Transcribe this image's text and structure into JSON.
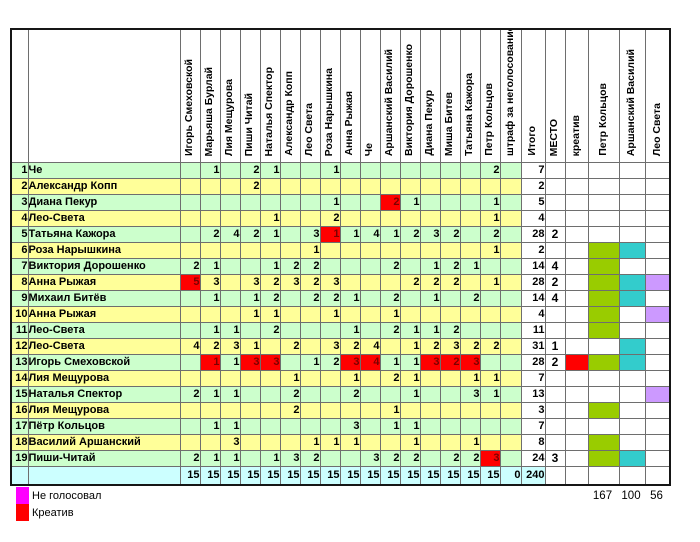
{
  "voters": [
    "Игорь Смеховской",
    "Марьяша Бурлай",
    "Лия Мещурова",
    "Пиши Читай",
    "Наталья Спектор",
    "Александр Копп",
    "Лео Света",
    "Роза Нарышкина",
    "Анна Рыжая",
    "Че",
    "Аршанский Василий",
    "Виктория Дорошенко",
    "Диана Пекур",
    "Миша Битев",
    "Татьяна Кажора",
    "Петр Кольцов"
  ],
  "columns": {
    "penalty": "штраф за неголосование",
    "total": "Итого",
    "place": "МЕСТО",
    "creative": "креатив"
  },
  "extra_voters": [
    "Петр Кольцов",
    "Аршанский Василий",
    "Лео Света"
  ],
  "rows": [
    {
      "num": "1",
      "name": "Че",
      "votes": [
        "",
        "1",
        "",
        "2",
        "1",
        "",
        "",
        "1",
        "",
        "",
        "",
        "",
        "",
        "",
        "",
        "2"
      ],
      "total": "7",
      "place": "",
      "creative": false,
      "g": false,
      "c": false,
      "v": false
    },
    {
      "num": "2",
      "name": "Александр Копп",
      "votes": [
        "",
        "",
        "",
        "2",
        "",
        "",
        "",
        "",
        "",
        "",
        "",
        "",
        "",
        "",
        "",
        ""
      ],
      "total": "2",
      "place": "",
      "creative": false,
      "g": false,
      "c": false,
      "v": false
    },
    {
      "num": "3",
      "name": "Диана Пекур",
      "votes": [
        "",
        "",
        "",
        "",
        "",
        "",
        "",
        "1",
        "",
        "",
        "R2",
        "1",
        "",
        "",
        "",
        "1"
      ],
      "total": "5",
      "place": "",
      "creative": false,
      "g": false,
      "c": false,
      "v": false
    },
    {
      "num": "4",
      "name": "Лео-Света",
      "votes": [
        "",
        "",
        "",
        "",
        "1",
        "",
        "",
        "2",
        "",
        "",
        "",
        "",
        "",
        "",
        "",
        "1"
      ],
      "total": "4",
      "place": "",
      "creative": false,
      "g": false,
      "c": false,
      "v": false
    },
    {
      "num": "5",
      "name": "Татьяна Кажора",
      "votes": [
        "",
        "2",
        "4",
        "2",
        "1",
        "",
        "3",
        "R1",
        "1",
        "4",
        "1",
        "2",
        "3",
        "2",
        "",
        "2"
      ],
      "total": "28",
      "place": "2",
      "creative": false,
      "g": false,
      "c": false,
      "v": false
    },
    {
      "num": "6",
      "name": "Роза Нарышкина",
      "votes": [
        "",
        "",
        "",
        "",
        "",
        "",
        "1",
        "",
        "",
        "",
        "",
        "",
        "",
        "",
        "",
        "1"
      ],
      "total": "2",
      "place": "",
      "creative": false,
      "g": true,
      "c": true,
      "v": false
    },
    {
      "num": "7",
      "name": "Виктория Дорошенко",
      "votes": [
        "2",
        "1",
        "",
        "",
        "1",
        "2",
        "2",
        "",
        "",
        "",
        "2",
        "",
        "1",
        "2",
        "1",
        ""
      ],
      "total": "14",
      "place": "4",
      "creative": false,
      "g": true,
      "c": false,
      "v": false
    },
    {
      "num": "8",
      "name": "Анна Рыжая",
      "votes": [
        "R5",
        "3",
        "",
        "3",
        "2",
        "3",
        "2",
        "3",
        "",
        "",
        "",
        "2",
        "2",
        "2",
        "",
        "1"
      ],
      "total": "28",
      "place": "2",
      "creative": false,
      "g": true,
      "c": true,
      "v": true
    },
    {
      "num": "9",
      "name": "Михаил Битёв",
      "votes": [
        "",
        "1",
        "",
        "1",
        "2",
        "",
        "2",
        "2",
        "1",
        "",
        "2",
        "",
        "1",
        "",
        "2",
        ""
      ],
      "total": "14",
      "place": "4",
      "creative": false,
      "g": true,
      "c": true,
      "v": false
    },
    {
      "num": "10",
      "name": "Анна Рыжая",
      "votes": [
        "",
        "",
        "",
        "1",
        "1",
        "",
        "",
        "1",
        "",
        "",
        "1",
        "",
        "",
        "",
        "",
        ""
      ],
      "total": "4",
      "place": "",
      "creative": false,
      "g": true,
      "c": false,
      "v": true
    },
    {
      "num": "11",
      "name": "Лео-Света",
      "votes": [
        "",
        "1",
        "1",
        "",
        "2",
        "",
        "",
        "",
        "1",
        "",
        "2",
        "1",
        "1",
        "2",
        "",
        ""
      ],
      "total": "11",
      "place": "",
      "creative": false,
      "g": true,
      "c": false,
      "v": false
    },
    {
      "num": "12",
      "name": "Лео-Света",
      "votes": [
        "4",
        "2",
        "3",
        "1",
        "",
        "2",
        "",
        "3",
        "2",
        "4",
        "",
        "1",
        "2",
        "3",
        "2",
        "2"
      ],
      "total": "31",
      "place": "1",
      "creative": false,
      "g": false,
      "c": true,
      "v": false
    },
    {
      "num": "13",
      "name": "Игорь Смеховской",
      "votes": [
        "",
        "R1",
        "1",
        "R3",
        "R3",
        "",
        "1",
        "2",
        "R3",
        "R4",
        "1",
        "1",
        "R3",
        "R2",
        "R3",
        ""
      ],
      "total": "28",
      "place": "2",
      "creative": true,
      "g": true,
      "c": true,
      "v": false
    },
    {
      "num": "14",
      "name": "Лия Мещурова",
      "votes": [
        "",
        "",
        "",
        "",
        "",
        "1",
        "",
        "",
        "1",
        "",
        "2",
        "1",
        "",
        "",
        "1",
        "1"
      ],
      "total": "7",
      "place": "",
      "creative": false,
      "g": false,
      "c": false,
      "v": false
    },
    {
      "num": "15",
      "name": "Наталья Спектор",
      "votes": [
        "2",
        "1",
        "1",
        "",
        "",
        "2",
        "",
        "",
        "2",
        "",
        "",
        "1",
        "",
        "",
        "3",
        "1"
      ],
      "total": "13",
      "place": "",
      "creative": false,
      "g": false,
      "c": false,
      "v": true
    },
    {
      "num": "16",
      "name": "Лия Мещурова",
      "votes": [
        "",
        "",
        "",
        "",
        "",
        "2",
        "",
        "",
        "",
        "",
        "1",
        "",
        "",
        "",
        "",
        ""
      ],
      "total": "3",
      "place": "",
      "creative": false,
      "g": true,
      "c": false,
      "v": false
    },
    {
      "num": "17",
      "name": "Пётр Кольцов",
      "votes": [
        "",
        "1",
        "1",
        "",
        "",
        "",
        "",
        "",
        "3",
        "",
        "1",
        "1",
        "",
        "",
        "",
        ""
      ],
      "total": "7",
      "place": "",
      "creative": false,
      "g": false,
      "c": false,
      "v": false
    },
    {
      "num": "18",
      "name": "Василий Аршанский",
      "votes": [
        "",
        "",
        "3",
        "",
        "",
        "",
        "1",
        "1",
        "1",
        "",
        "",
        "1",
        "",
        "",
        "1",
        ""
      ],
      "total": "8",
      "place": "",
      "creative": false,
      "g": true,
      "c": false,
      "v": false
    },
    {
      "num": "19",
      "name": "Пиши-Читай",
      "votes": [
        "2",
        "1",
        "1",
        "",
        "1",
        "3",
        "2",
        "",
        "",
        "3",
        "2",
        "2",
        "",
        "2",
        "2",
        "R3"
      ],
      "total": "24",
      "place": "3",
      "creative": false,
      "g": true,
      "c": true,
      "v": false
    }
  ],
  "totals_row": {
    "per_voter": [
      "15",
      "15",
      "15",
      "15",
      "15",
      "15",
      "15",
      "15",
      "15",
      "15",
      "15",
      "15",
      "15",
      "15",
      "15",
      "15"
    ],
    "penalty": "0",
    "grand_total": "240"
  },
  "legend": {
    "items": [
      {
        "color": "#ff00ff",
        "label": "Не голосовал"
      },
      {
        "color": "#ff0000",
        "label": "Креатив"
      }
    ]
  },
  "footer_values": [
    "167",
    "100",
    "56"
  ],
  "colors": {
    "row_green": "#ccffcc",
    "row_yellow": "#ffff99",
    "red_mark": "#ff0000",
    "totals_cyan": "#ccffff",
    "flag_green": "#99cc00",
    "flag_cyan": "#33cccc",
    "flag_violet": "#cc99ff",
    "legend_magenta": "#ff00ff"
  }
}
